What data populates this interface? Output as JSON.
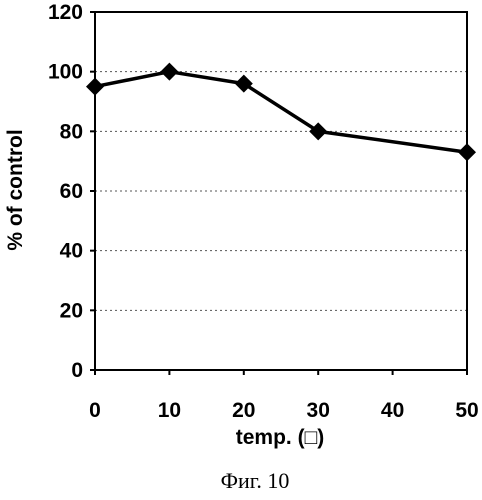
{
  "chart_data": {
    "type": "line",
    "x": [
      0,
      10,
      20,
      30,
      50
    ],
    "y": [
      95,
      100,
      96,
      80,
      73
    ],
    "xlabel": "temp. (□)",
    "ylabel": "% of control",
    "xlim": [
      0,
      50
    ],
    "ylim": [
      0,
      120
    ],
    "x_ticks": [
      0,
      10,
      20,
      30,
      40,
      50
    ],
    "y_ticks": [
      0,
      20,
      40,
      60,
      80,
      100,
      120
    ],
    "grid": "horizontal dashed",
    "marker": "diamond",
    "line_color": "#000000"
  },
  "caption": "Фиг. 10"
}
